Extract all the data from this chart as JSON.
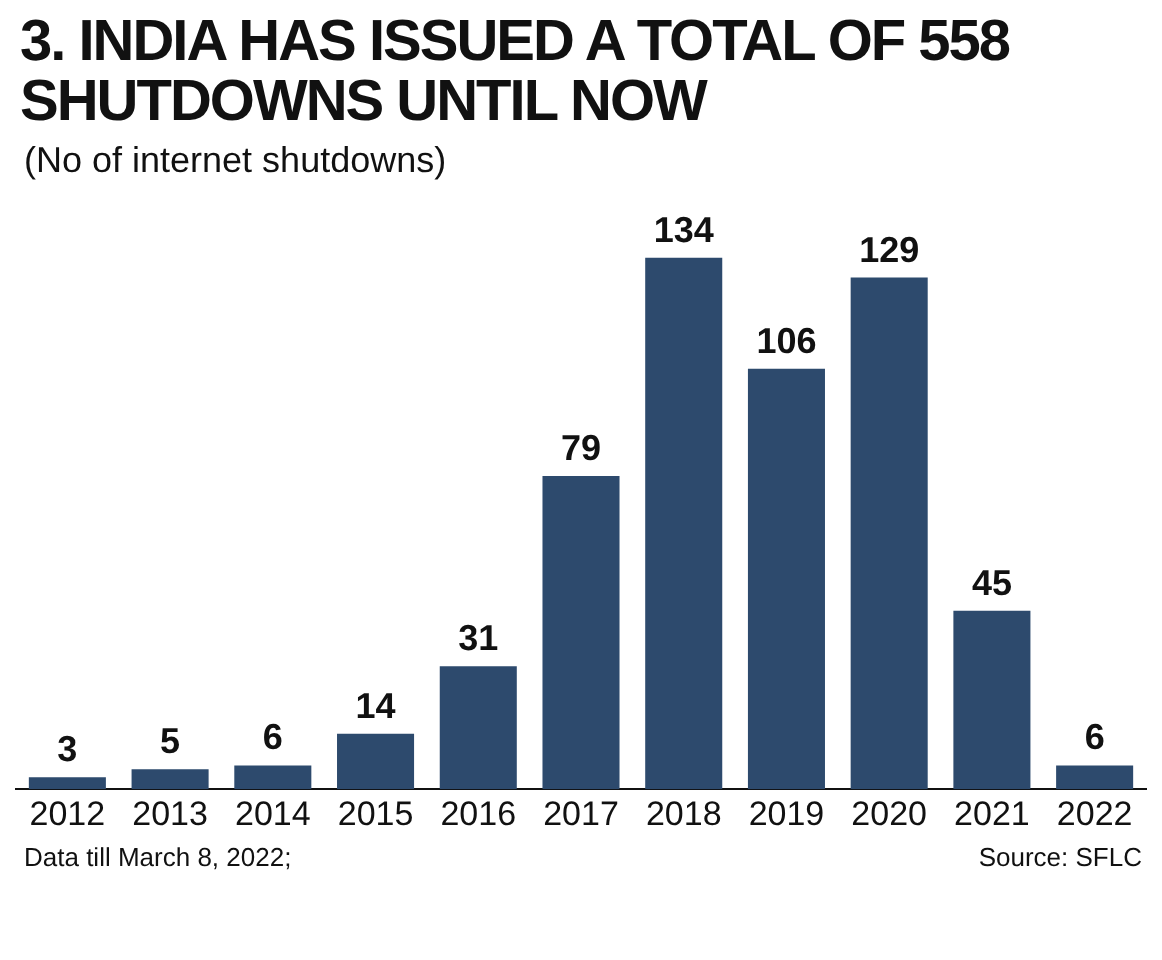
{
  "chart_data": {
    "type": "bar",
    "title": "3. INDIA HAS ISSUED A TOTAL OF 558 SHUTDOWNS UNTIL NOW",
    "subtitle": "(No of internet shutdowns)",
    "categories": [
      "2012",
      "2013",
      "2014",
      "2015",
      "2016",
      "2017",
      "2018",
      "2019",
      "2020",
      "2021",
      "2022"
    ],
    "values": [
      3,
      5,
      6,
      14,
      31,
      79,
      134,
      106,
      129,
      45,
      6
    ],
    "color": "#2d4a6d",
    "data_labels": true,
    "grid": false,
    "legend": false,
    "tick_labels": "x",
    "annotations": [
      "Data till March 8, 2022;",
      "Source: SFLC"
    ]
  }
}
